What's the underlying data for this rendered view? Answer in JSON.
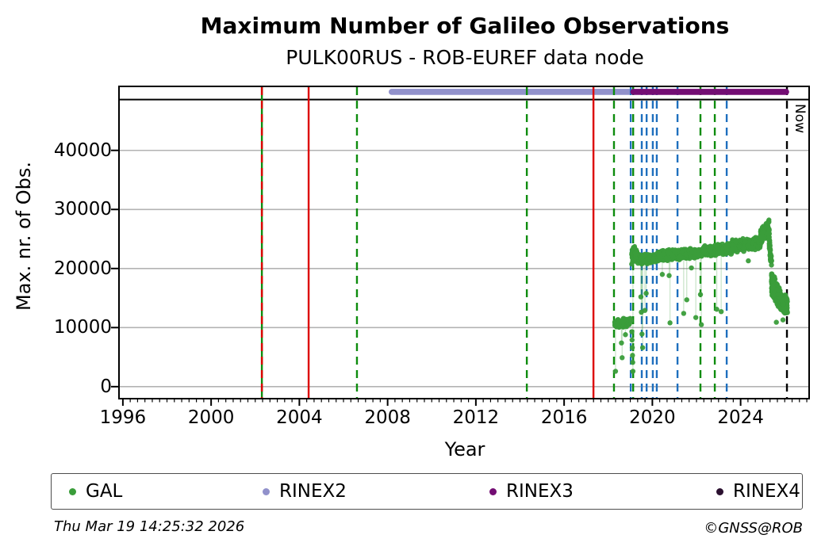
{
  "title": "Maximum Number of Galileo Observations",
  "subtitle": "PULK00RUS - ROB-EUREF data node",
  "footer": {
    "timestamp": "Thu Mar 19 14:25:32 2026",
    "credit": "©GNSS@ROB"
  },
  "colors": {
    "point_green": "#3a9d3a",
    "line_green": "#0d8c0d",
    "line_red": "#dd0000",
    "line_blue": "#1e6fbe",
    "line_black": "#000000",
    "grid": "#b3b3b3",
    "rinex2": "#9191cb",
    "rinex3": "#730d73",
    "rinex4": "#2b1030",
    "dropline": "rgba(58,157,58,0.28)"
  },
  "chart_data": {
    "type": "scatter",
    "title": "Maximum Number of Galileo Observations",
    "subtitle": "PULK00RUS - ROB-EUREF data node",
    "xlabel": "Year",
    "ylabel": "Max. nr. of Obs.",
    "xlim": [
      1995.86,
      2027.07
    ],
    "ylim": [
      -1900,
      50700
    ],
    "xticks": [
      1996,
      2000,
      2004,
      2008,
      2012,
      2016,
      2020,
      2024
    ],
    "yticks": [
      0,
      10000,
      20000,
      30000,
      40000
    ],
    "minor_xtick_step": 0.3333333,
    "grid": "horizontal-only",
    "inner_top_line_value": 48600,
    "now": {
      "year": 2026.1,
      "label": "Now"
    },
    "bars": [
      {
        "name": "RINEX2",
        "start": 2008.05,
        "end": 2019.15,
        "value": 49900,
        "color_key": "rinex2"
      },
      {
        "name": "RINEX3",
        "start": 2019.0,
        "end": 2026.2,
        "value": 49900,
        "color_key": "rinex3"
      }
    ],
    "vlines": [
      {
        "year": 2002.3,
        "color_key": "line_green",
        "style": "solid"
      },
      {
        "year": 2002.3,
        "color_key": "line_red",
        "style": "dashed"
      },
      {
        "year": 2004.42,
        "color_key": "line_red",
        "style": "solid"
      },
      {
        "year": 2006.61,
        "color_key": "line_green",
        "style": "dashed"
      },
      {
        "year": 2014.31,
        "color_key": "line_green",
        "style": "dashed"
      },
      {
        "year": 2017.33,
        "color_key": "line_red",
        "style": "solid"
      },
      {
        "year": 2018.26,
        "color_key": "line_green",
        "style": "dashed"
      },
      {
        "year": 2019.02,
        "color_key": "line_blue",
        "style": "dashed"
      },
      {
        "year": 2019.13,
        "color_key": "line_green",
        "style": "dashed"
      },
      {
        "year": 2019.52,
        "color_key": "line_blue",
        "style": "dashed"
      },
      {
        "year": 2019.74,
        "color_key": "line_blue",
        "style": "dashed"
      },
      {
        "year": 2020.02,
        "color_key": "line_blue",
        "style": "dashed"
      },
      {
        "year": 2020.2,
        "color_key": "line_blue",
        "style": "dashed"
      },
      {
        "year": 2021.14,
        "color_key": "line_blue",
        "style": "dashed"
      },
      {
        "year": 2022.18,
        "color_key": "line_green",
        "style": "dashed"
      },
      {
        "year": 2022.83,
        "color_key": "line_green",
        "style": "dashed"
      },
      {
        "year": 2023.37,
        "color_key": "line_blue",
        "style": "dashed"
      }
    ],
    "legend": [
      {
        "label": "GAL",
        "color_key": "point_green"
      },
      {
        "label": "RINEX2",
        "color_key": "rinex2"
      },
      {
        "label": "RINEX3",
        "color_key": "rinex3"
      },
      {
        "label": "RINEX4",
        "color_key": "rinex4"
      }
    ],
    "series": [
      {
        "name": "GAL",
        "color_key": "point_green",
        "segments": [
          {
            "x0": 2018.3,
            "x1": 2019.02,
            "v0": 10600,
            "v1": 10900,
            "spread": 800,
            "n": 130
          },
          {
            "x0": 2019.05,
            "x1": 2019.2,
            "v0": 21800,
            "v1": 23100,
            "spread": 1400,
            "n": 55
          },
          {
            "x0": 2019.2,
            "x1": 2019.45,
            "v0": 22400,
            "v1": 21500,
            "spread": 1100,
            "n": 60
          },
          {
            "x0": 2019.45,
            "x1": 2020.25,
            "v0": 21400,
            "v1": 21900,
            "spread": 900,
            "n": 170
          },
          {
            "x0": 2020.25,
            "x1": 2022.3,
            "v0": 22100,
            "v1": 22700,
            "spread": 950,
            "n": 390
          },
          {
            "x0": 2022.3,
            "x1": 2023.6,
            "v0": 22900,
            "v1": 23400,
            "spread": 1000,
            "n": 260
          },
          {
            "x0": 2023.6,
            "x1": 2024.9,
            "v0": 23800,
            "v1": 24300,
            "spread": 1150,
            "n": 260
          },
          {
            "x0": 2024.9,
            "x1": 2025.3,
            "v0": 25400,
            "v1": 27200,
            "spread": 1500,
            "n": 110
          },
          {
            "x0": 2025.28,
            "x1": 2025.4,
            "v0": 25500,
            "v1": 20500,
            "spread": 1400,
            "n": 40
          },
          {
            "x0": 2025.4,
            "x1": 2025.75,
            "v0": 17600,
            "v1": 14900,
            "spread": 2000,
            "n": 230
          },
          {
            "x0": 2025.75,
            "x1": 2026.12,
            "v0": 14900,
            "v1": 13600,
            "spread": 1700,
            "n": 210
          }
        ],
        "outliers": [
          [
            2018.33,
            2600,
            10300
          ],
          [
            2018.6,
            7400,
            10400
          ],
          [
            2018.63,
            4900,
            10400
          ],
          [
            2018.78,
            8800,
            10500
          ],
          [
            2019.07,
            9300,
            null
          ],
          [
            2019.08,
            7900,
            null
          ],
          [
            2019.09,
            6600,
            null
          ],
          [
            2019.1,
            5300,
            null
          ],
          [
            2019.11,
            4100,
            null
          ],
          [
            2019.12,
            2600,
            21000
          ],
          [
            2019.48,
            15200,
            21300
          ],
          [
            2019.5,
            12600,
            21300
          ],
          [
            2019.53,
            8900,
            21300
          ],
          [
            2019.56,
            6600,
            21300
          ],
          [
            2019.66,
            12900,
            21400
          ],
          [
            2019.72,
            15800,
            21400
          ],
          [
            2020.45,
            19000,
            22100
          ],
          [
            2020.76,
            18800,
            22200
          ],
          [
            2020.8,
            10800,
            22200
          ],
          [
            2021.42,
            12400,
            22300
          ],
          [
            2021.56,
            14700,
            22300
          ],
          [
            2021.77,
            20100,
            null
          ],
          [
            2021.97,
            11700,
            22400
          ],
          [
            2022.18,
            15600,
            22400
          ],
          [
            2022.22,
            10500,
            22400
          ],
          [
            2022.92,
            13100,
            23000
          ],
          [
            2023.12,
            12700,
            23100
          ],
          [
            2024.35,
            21300,
            null
          ],
          [
            2025.62,
            10900,
            null
          ],
          [
            2025.92,
            11300,
            null
          ]
        ]
      }
    ]
  }
}
